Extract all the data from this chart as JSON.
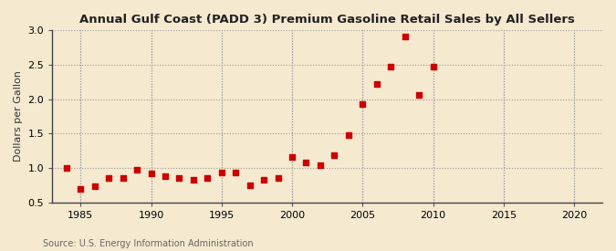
{
  "title": "Annual Gulf Coast (PADD 3) Premium Gasoline Retail Sales by All Sellers",
  "ylabel": "Dollars per Gallon",
  "source": "Source: U.S. Energy Information Administration",
  "background_color": "#f5e9d0",
  "plot_bg_color": "#f5e9d0",
  "years": [
    1984,
    1985,
    1986,
    1987,
    1988,
    1989,
    1990,
    1991,
    1992,
    1993,
    1994,
    1995,
    1996,
    1997,
    1998,
    1999,
    2000,
    2001,
    2002,
    2003,
    2004,
    2005,
    2006,
    2007,
    2008,
    2009,
    2010
  ],
  "values": [
    1.0,
    0.7,
    0.73,
    0.85,
    0.85,
    0.97,
    0.92,
    0.88,
    0.85,
    0.83,
    0.85,
    0.93,
    0.94,
    0.75,
    0.83,
    0.85,
    1.16,
    1.08,
    1.04,
    1.18,
    1.48,
    1.93,
    2.22,
    2.47,
    2.91,
    2.06,
    2.48
  ],
  "marker_color": "#cc0000",
  "marker_size": 16,
  "xlim": [
    1983,
    2022
  ],
  "ylim": [
    0.5,
    3.0
  ],
  "xticks": [
    1985,
    1990,
    1995,
    2000,
    2005,
    2010,
    2015,
    2020
  ],
  "yticks": [
    0.5,
    1.0,
    1.5,
    2.0,
    2.5,
    3.0
  ]
}
